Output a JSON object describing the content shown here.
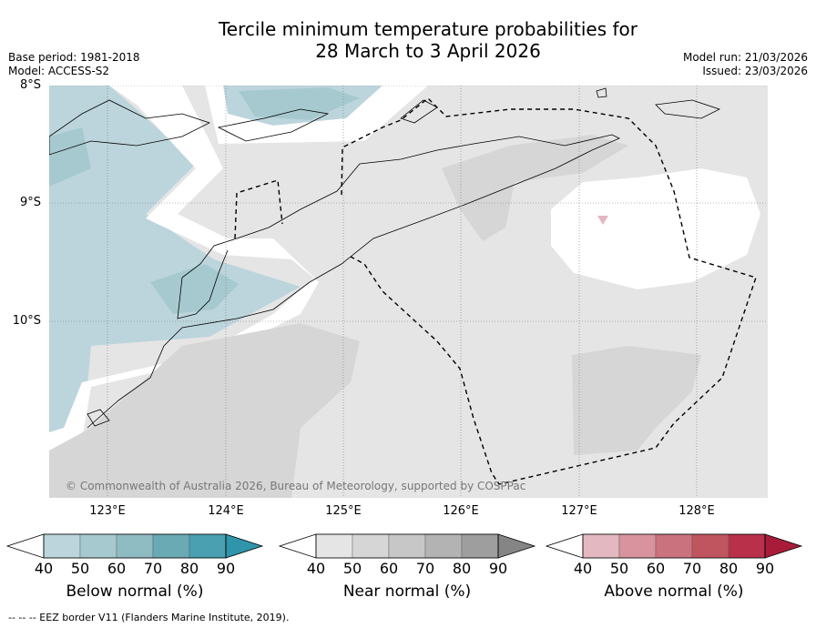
{
  "title": {
    "line1": "Tercile minimum temperature probabilities for",
    "line2": "28 March to 3 April 2026"
  },
  "meta": {
    "base_period": "Base period: 1981-2018",
    "model": "Model: ACCESS-S2",
    "model_run": "Model run: 21/03/2026",
    "issued": "Issued: 23/03/2026"
  },
  "map": {
    "lat_labels": [
      "8°S",
      "9°S",
      "10°S"
    ],
    "lon_labels": [
      "123°E",
      "124°E",
      "125°E",
      "126°E",
      "127°E",
      "128°E"
    ],
    "copyright": "© Commonwealth of Australia 2026, Bureau of Meteorology, supported by COSPPac"
  },
  "colorbars": [
    {
      "label": "Below normal (%)",
      "ticks": [
        "40",
        "50",
        "60",
        "70",
        "80",
        "90"
      ],
      "colors": [
        "#bcd5dc",
        "#a6c9cf",
        "#8fbcc3",
        "#6aaab5",
        "#4aa0b0",
        "#2f95ab"
      ]
    },
    {
      "label": "Near normal (%)",
      "ticks": [
        "40",
        "50",
        "60",
        "70",
        "80",
        "90"
      ],
      "colors": [
        "#e5e5e5",
        "#d6d6d6",
        "#c7c7c7",
        "#b3b3b3",
        "#9e9e9e",
        "#858585"
      ]
    },
    {
      "label": "Above normal (%)",
      "ticks": [
        "40",
        "50",
        "60",
        "70",
        "80",
        "90"
      ],
      "colors": [
        "#e3b8c0",
        "#d8939e",
        "#ca727e",
        "#c0555f",
        "#b8304a",
        "#a81c3a"
      ]
    }
  ],
  "footer": "--  --  -- EEZ border V11 (Flanders Marine Institute, 2019)."
}
